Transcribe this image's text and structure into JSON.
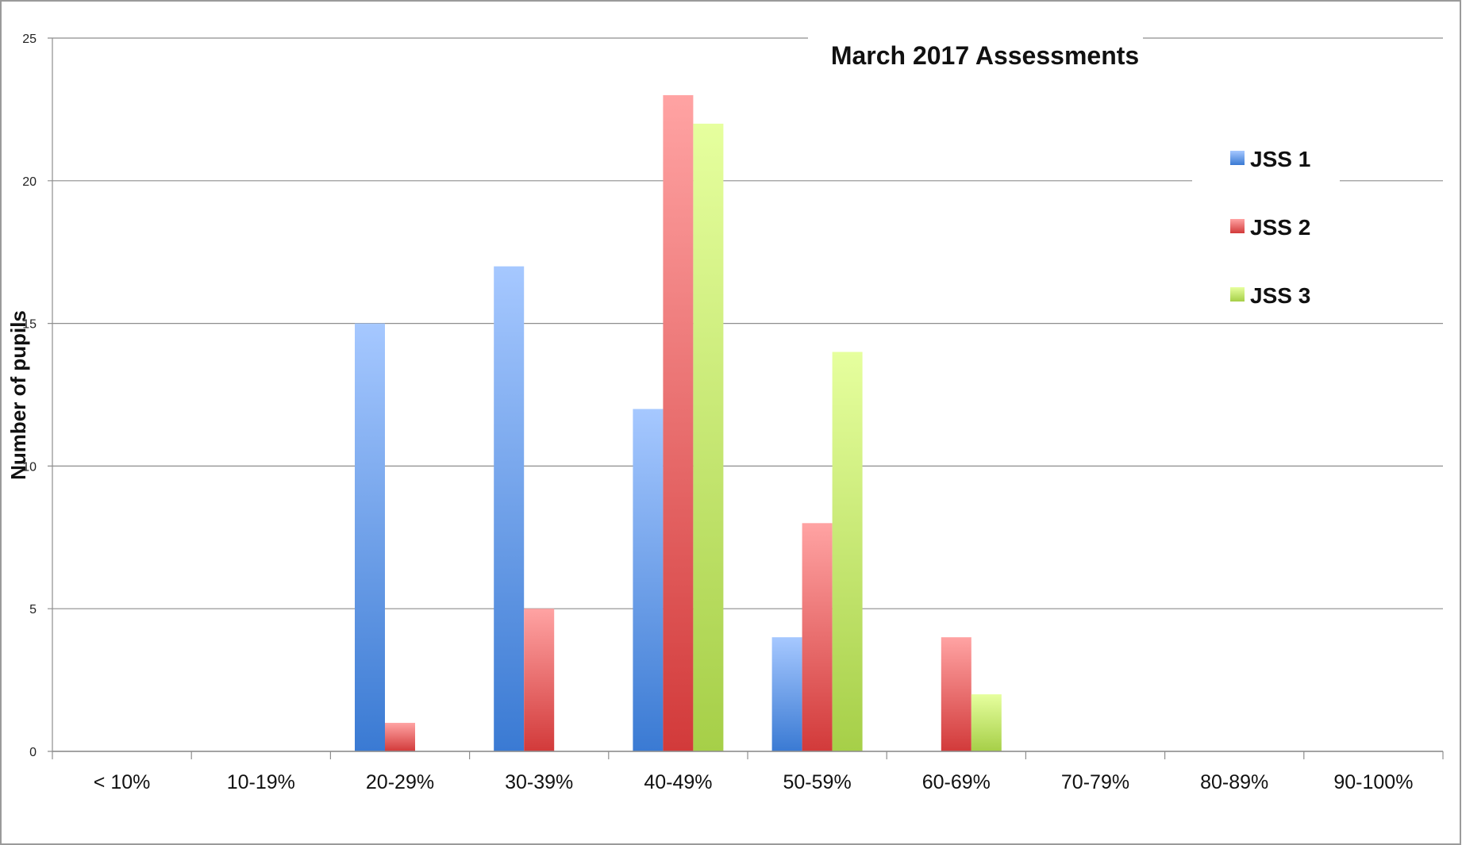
{
  "chart_data": {
    "type": "bar",
    "title": "March 2017 Assessments",
    "xlabel": "",
    "ylabel": "Number of pupils",
    "categories": [
      "< 10%",
      "10-19%",
      "20-29%",
      "30-39%",
      "40-49%",
      "50-59%",
      "60-69%",
      "70-79%",
      "80-89%",
      "90-100%"
    ],
    "series": [
      {
        "name": "JSS 1",
        "values": [
          0,
          0,
          15,
          17,
          12,
          4,
          0,
          0,
          0,
          0
        ],
        "color_light": "#a6c8ff",
        "color_dark": "#3a7ad3"
      },
      {
        "name": "JSS 2",
        "values": [
          0,
          0,
          1,
          5,
          23,
          8,
          4,
          0,
          0,
          0
        ],
        "color_light": "#ffa3a3",
        "color_dark": "#d23a3a"
      },
      {
        "name": "JSS 3",
        "values": [
          0,
          0,
          0,
          0,
          22,
          14,
          2,
          0,
          0,
          0
        ],
        "color_light": "#e6ff9e",
        "color_dark": "#a6cf48"
      }
    ],
    "ylim": [
      0,
      25
    ],
    "yticks": [
      "0",
      "5",
      "10",
      "15",
      "20",
      "25"
    ],
    "grid": true,
    "legend_position": "right"
  }
}
